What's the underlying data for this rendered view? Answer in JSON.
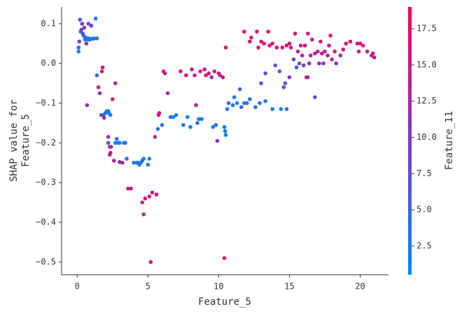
{
  "chart_data": {
    "type": "scatter",
    "xlabel": "Feature_5",
    "ylabel": [
      "SHAP value for",
      "Feature_5"
    ],
    "xlim": [
      -1.1,
      22
    ],
    "xticks": [
      0,
      5,
      10,
      15,
      20
    ],
    "ylim": [
      -0.532,
      0.142
    ],
    "yticks": [
      {
        "value": 0.1,
        "label": "0.1"
      },
      {
        "value": 0,
        "label": "0.0"
      },
      {
        "value": -0.1,
        "label": "−0.1"
      },
      {
        "value": -0.2,
        "label": "−0.2"
      },
      {
        "value": -0.3,
        "label": "−0.3"
      },
      {
        "value": -0.4,
        "label": "−0.4"
      },
      {
        "value": -0.5,
        "label": "−0.5"
      }
    ],
    "x": [
      0.1,
      0.1,
      0.15,
      0.2,
      0.25,
      0.3,
      0.35,
      0.4,
      0.45,
      0.5,
      0.55,
      0.6,
      0.65,
      0.7,
      0.75,
      0.8,
      0.9,
      1.0,
      1.1,
      1.2,
      1.3,
      1.4,
      0.8,
      1.0,
      1.4,
      1.5,
      1.6,
      1.7,
      1.75,
      1.8,
      1.85,
      1.9,
      2.0,
      2.1,
      2.2,
      2.25,
      2.35,
      2.2,
      2.2,
      2.3,
      2.3,
      2.35,
      2.4,
      2.5,
      2.7,
      2.6,
      2.7,
      2.8,
      2.9,
      3.0,
      3.0,
      3.2,
      3.3,
      3.4,
      3.5,
      3.6,
      3.8,
      4.0,
      4.2,
      4.4,
      4.5,
      4.6,
      4.7,
      4.3,
      4.6,
      4.7,
      4.8,
      5.0,
      5.1,
      5.1,
      5.3,
      5.6,
      5.2,
      5.5,
      5.7,
      5.75,
      5.8,
      6.0,
      6.1,
      6.2,
      6.4,
      6.6,
      6.8,
      7.0,
      7.3,
      7.5,
      7.7,
      7.8,
      8.0,
      8.1,
      8.3,
      8.4,
      8.5,
      8.6,
      8.7,
      8.8,
      9.0,
      9.1,
      9.3,
      9.5,
      9.6,
      9.7,
      9.8,
      9.9,
      10.0,
      10.1,
      10.3,
      10.4,
      10.45,
      10.5,
      10.6,
      10.7,
      10.5,
      10.4,
      11.0,
      11.1,
      11.3,
      11.5,
      11.6,
      11.8,
      11.8,
      12.0,
      12.2,
      12.2,
      12.3,
      12.6,
      12.7,
      12.8,
      12.9,
      13.0,
      13.0,
      13.2,
      13.3,
      13.3,
      13.5,
      13.6,
      13.8,
      13.8,
      14.0,
      14.1,
      14.3,
      14.4,
      14.5,
      14.6,
      14.7,
      14.8,
      14.8,
      15.0,
      15.0,
      15.1,
      15.3,
      15.4,
      15.5,
      15.6,
      15.7,
      15.8,
      15.9,
      16.0,
      16.1,
      16.2,
      16.3,
      16.3,
      16.4,
      16.5,
      16.6,
      16.8,
      16.8,
      17.0,
      17.1,
      17.2,
      17.3,
      17.4,
      17.5,
      17.7,
      17.8,
      17.9,
      18.0,
      18.2,
      18.3,
      18.6,
      18.8,
      19.0,
      19.3,
      19.8,
      19.9,
      20.0,
      20.2,
      20.5,
      20.8,
      20.9,
      21.0
    ],
    "values": [
      0.04,
      0.03,
      0.055,
      0.11,
      0.08,
      0.085,
      0.1,
      0.075,
      0.07,
      0.09,
      0.06,
      0.065,
      0.05,
      -0.105,
      0.06,
      0.063,
      0.06,
      0.062,
      0.062,
      0.063,
      0.113,
      0.063,
      0.1,
      0.095,
      -0.03,
      -0.06,
      -0.075,
      -0.13,
      -0.02,
      -0.01,
      -0.13,
      -0.137,
      -0.125,
      -0.12,
      -0.12,
      -0.125,
      -0.13,
      -0.185,
      -0.2,
      -0.21,
      -0.23,
      -0.225,
      -0.21,
      -0.09,
      -0.05,
      -0.245,
      -0.2,
      -0.19,
      -0.2,
      -0.2,
      -0.248,
      -0.25,
      -0.2,
      -0.2,
      -0.24,
      -0.315,
      -0.315,
      -0.25,
      -0.25,
      -0.255,
      -0.25,
      -0.245,
      -0.24,
      -0.25,
      -0.35,
      -0.38,
      -0.34,
      -0.255,
      -0.24,
      -0.335,
      -0.325,
      -0.33,
      -0.5,
      -0.185,
      -0.165,
      -0.13,
      -0.125,
      -0.155,
      -0.02,
      -0.025,
      -0.075,
      -0.135,
      -0.135,
      -0.13,
      -0.02,
      -0.155,
      -0.03,
      -0.135,
      -0.16,
      -0.015,
      -0.03,
      -0.105,
      -0.15,
      -0.14,
      -0.02,
      -0.14,
      -0.015,
      -0.03,
      -0.025,
      -0.035,
      -0.16,
      -0.02,
      -0.155,
      -0.195,
      -0.025,
      -0.03,
      -0.035,
      -0.16,
      -0.17,
      -0.18,
      -0.115,
      -0.1,
      0.04,
      -0.49,
      -0.105,
      -0.085,
      -0.1,
      -0.065,
      -0.11,
      -0.1,
      0.08,
      -0.1,
      -0.09,
      0.055,
      0.065,
      -0.11,
      0.08,
      0.04,
      -0.1,
      -0.05,
      0.055,
      0.05,
      -0.095,
      -0.025,
      0.08,
      0.045,
      -0.115,
      0.05,
      -0.005,
      0.04,
      -0.02,
      -0.115,
      0.04,
      -0.06,
      -0.05,
      -0.115,
      0.045,
      0.05,
      -0.035,
      0.04,
      0.01,
      0.075,
      -0.01,
      0.03,
      0.0,
      0.045,
      0.02,
      -0.005,
      0.045,
      -0.035,
      0.075,
      -0.035,
      0.0,
      0.02,
      0.06,
      -0.085,
      0.025,
      0.03,
      0.0,
      0.055,
      0.025,
      0.0,
      0.03,
      0.02,
      0.045,
      0.07,
      0.01,
      0.03,
      0.0,
      0.02,
      0.035,
      0.05,
      0.055,
      0.05,
      0.03,
      0.05,
      0.045,
      0.03,
      0.02,
      0.025,
      0.015
    ],
    "color_values": [
      3,
      2,
      8,
      8,
      7,
      9,
      10,
      5,
      6,
      11,
      3,
      4,
      12,
      11,
      2,
      3,
      2,
      2,
      2,
      3,
      2,
      2,
      9,
      10,
      5,
      15,
      10,
      4,
      15,
      16,
      9,
      13,
      3,
      2,
      3,
      2,
      1,
      12,
      9,
      13,
      15,
      14,
      12,
      16,
      11,
      14,
      2,
      3,
      1,
      2,
      11,
      13,
      2,
      2,
      4,
      15,
      16,
      2,
      2,
      2,
      1,
      3,
      2,
      4,
      14,
      13,
      15,
      2,
      2,
      15,
      16,
      15,
      17,
      13,
      3,
      15,
      16,
      3,
      16,
      15,
      13,
      3,
      2,
      2,
      16,
      3,
      15,
      2,
      2,
      16,
      15,
      13,
      4,
      3,
      16,
      2,
      14,
      16,
      15,
      12,
      2,
      16,
      3,
      10,
      16,
      15,
      14,
      2,
      3,
      2,
      2,
      3,
      16,
      17,
      3,
      2,
      3,
      4,
      4,
      3,
      17,
      2,
      3,
      17,
      16,
      4,
      17,
      16,
      3,
      6,
      17,
      16,
      3,
      6,
      17,
      16,
      3,
      16,
      7,
      16,
      8,
      2,
      15,
      9,
      6,
      3,
      17,
      16,
      10,
      15,
      8,
      16,
      6,
      14,
      7,
      16,
      13,
      10,
      15,
      14,
      17,
      12,
      11,
      13,
      15,
      8,
      14,
      13,
      12,
      17,
      16,
      10,
      12,
      14,
      16,
      17,
      13,
      15,
      11,
      13,
      17,
      16,
      17,
      16,
      15,
      17,
      16,
      14,
      13,
      16,
      15
    ],
    "colorbar": {
      "label": "Feature_11",
      "lim": [
        0.52,
        19.0
      ],
      "ticks": [
        2.5,
        {
          "value": 5,
          "label": "5.0"
        },
        7.5,
        {
          "value": 10,
          "label": "10.0"
        },
        12.5,
        {
          "value": 15,
          "label": "15.0"
        },
        17.5
      ],
      "colors": [
        "#008bfb",
        "#7e3ac7",
        "#ff0051"
      ]
    }
  }
}
